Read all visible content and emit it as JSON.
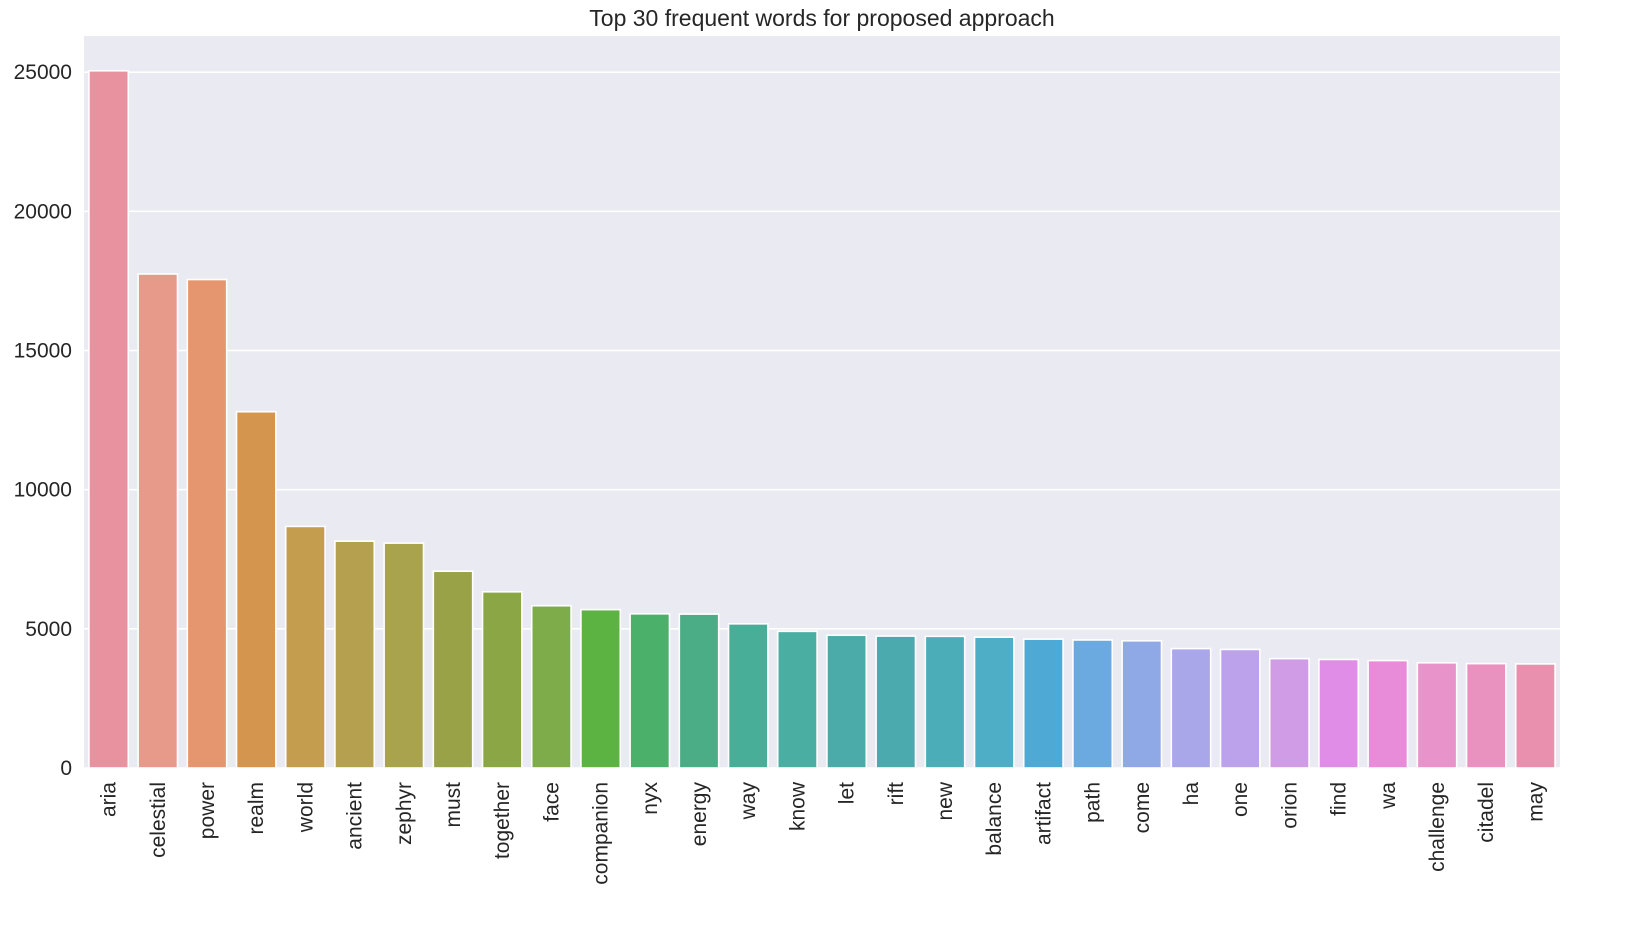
{
  "chart_data": {
    "type": "bar",
    "title": "Top 30 frequent words for proposed approach",
    "xlabel": "",
    "ylabel": "",
    "ylim": [
      0,
      26300
    ],
    "yticks": [
      0,
      5000,
      10000,
      15000,
      20000,
      25000
    ],
    "grid": true,
    "legend": "none",
    "categories": [
      "aria",
      "celestial",
      "power",
      "realm",
      "world",
      "ancient",
      "zephyr",
      "must",
      "together",
      "face",
      "companion",
      "nyx",
      "energy",
      "way",
      "know",
      "let",
      "rift",
      "new",
      "balance",
      "artifact",
      "path",
      "come",
      "ha",
      "one",
      "orion",
      "find",
      "wa",
      "challenge",
      "citadel",
      "may"
    ],
    "values": [
      25050,
      17750,
      17550,
      12800,
      8680,
      8150,
      8080,
      7070,
      6330,
      5830,
      5690,
      5540,
      5530,
      5180,
      4910,
      4770,
      4740,
      4730,
      4700,
      4630,
      4600,
      4570,
      4290,
      4260,
      3930,
      3900,
      3860,
      3780,
      3750,
      3740
    ],
    "colors": [
      "#e8929f",
      "#e79a8a",
      "#e5966e",
      "#d4954e",
      "#c49d4e",
      "#b5a050",
      "#a8a34c",
      "#9aa248",
      "#8ba745",
      "#7fac4a",
      "#5db342",
      "#4bb16a",
      "#4aad86",
      "#49ae98",
      "#4aaea3",
      "#4aaba8",
      "#4aaaae",
      "#4aadb8",
      "#4daec5",
      "#4ea9d4",
      "#6aaae0",
      "#8fa9e6",
      "#aaa6ea",
      "#bca2eb",
      "#cf9ce5",
      "#e08de8",
      "#e88cd9",
      "#e993cb",
      "#e992bf",
      "#e890ae"
    ],
    "background": "#eaeaf2",
    "grid_color": "#ffffff"
  }
}
